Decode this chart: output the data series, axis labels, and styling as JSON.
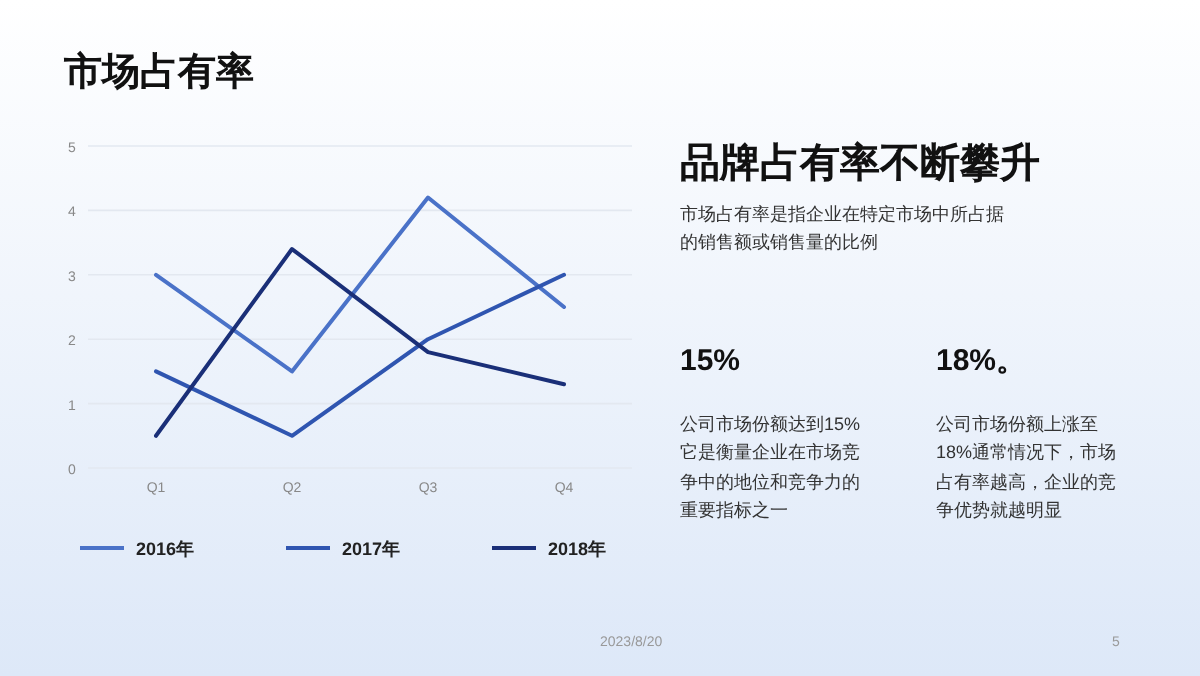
{
  "chart_data": {
    "type": "line",
    "title": "市场占有率",
    "categories": [
      "Q1",
      "Q2",
      "Q3",
      "Q4"
    ],
    "series": [
      {
        "name": "2016年",
        "color": "#4a72c8",
        "values": [
          3,
          1.5,
          4.2,
          2.5
        ]
      },
      {
        "name": "2017年",
        "color": "#2f55b0",
        "values": [
          1.5,
          0.5,
          2,
          3
        ]
      },
      {
        "name": "2018年",
        "color": "#1a2f78",
        "values": [
          0.5,
          3.4,
          1.8,
          1.3
        ]
      }
    ],
    "ylim": [
      0,
      5
    ],
    "yticks": [
      0,
      1,
      2,
      3,
      4,
      5
    ],
    "grid": "y",
    "legend": "bottom",
    "annotations": [
      "品牌占有率不断攀升",
      "市场占有率是指企业在特定市场中所占据的销售额或销售量的比例",
      "15%",
      "公司市场份额达到15%它是衡量企业在市场竞争中的地位和竞争力的重要指标之一",
      "18%。",
      "公司市场份额上涨至18%通常情况下，市场占有率越高，企业的竞争优势就越明显",
      "2023/8/20",
      "5"
    ]
  }
}
